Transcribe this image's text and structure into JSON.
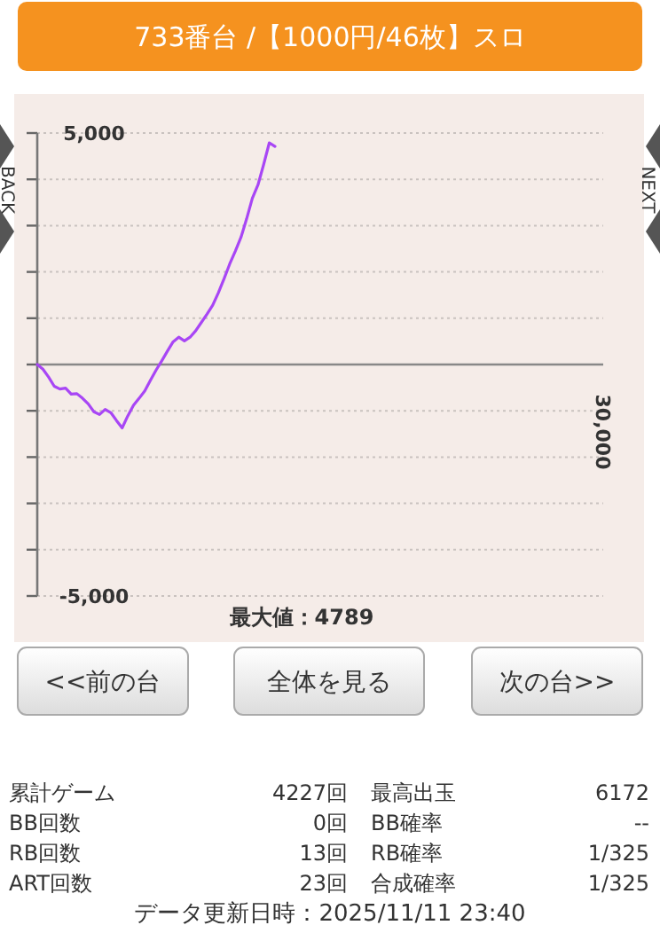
{
  "chart_data": {
    "type": "line",
    "title": "733番台 /【1000円/46枚】スロ",
    "categories": [
      null,
      null,
      null,
      null,
      null,
      null,
      null,
      null,
      null,
      null,
      null,
      null,
      null,
      null,
      null,
      null,
      null,
      null,
      null,
      null,
      null,
      null,
      null,
      null,
      null,
      null,
      null,
      null,
      null,
      null,
      null,
      null,
      null,
      null,
      null,
      null,
      null,
      null,
      null,
      null,
      null,
      null,
      null,
      null,
      null,
      null,
      null,
      null,
      null,
      null,
      null,
      null,
      null,
      null,
      null,
      null,
      null,
      null,
      null,
      null,
      null,
      null,
      null,
      null,
      null,
      null,
      null,
      null,
      null,
      null,
      null,
      null,
      null,
      null,
      null,
      null,
      null,
      null,
      null,
      null,
      null,
      null,
      null,
      null,
      null,
      null,
      null,
      null,
      null,
      null,
      null,
      null,
      null,
      null,
      null,
      null,
      null,
      null,
      null,
      null,
      null
    ],
    "series": [
      {
        "color": "#a846f5",
        "values": [
          0,
          -100,
          -270,
          -470,
          -530,
          -510,
          -640,
          -630,
          -730,
          -850,
          -1020,
          -1080,
          -970,
          -1040,
          -1210,
          -1370,
          -1110,
          -880,
          -730,
          -570,
          -340,
          -120,
          80,
          290,
          490,
          590,
          510,
          590,
          730,
          910,
          1090,
          1280,
          1550,
          1850,
          2170,
          2450,
          2750,
          3150,
          3590,
          3880,
          4320,
          4789,
          4710,
          null,
          null,
          null,
          null,
          null,
          null,
          null,
          null,
          null,
          null,
          null,
          null,
          null,
          null,
          null,
          null,
          null,
          null,
          null,
          null,
          null,
          null,
          null,
          null,
          null,
          null,
          null,
          null,
          null,
          null,
          null,
          null,
          null,
          null,
          null,
          null,
          null,
          null,
          null,
          null,
          null,
          null,
          null,
          null,
          null,
          null,
          null,
          null,
          null,
          null,
          null,
          null,
          null,
          null,
          null,
          null,
          null,
          null
        ]
      }
    ],
    "ylim": [
      -5000,
      5000
    ],
    "yticks": [
      {
        "value": 5000,
        "label": "5,000"
      },
      {
        "value": 4000,
        "label": null
      },
      {
        "value": 3000,
        "label": null
      },
      {
        "value": 2000,
        "label": null
      },
      {
        "value": 1000,
        "label": null
      },
      {
        "value": 0,
        "label": null
      },
      {
        "value": -1000,
        "label": null
      },
      {
        "value": -2000,
        "label": null
      },
      {
        "value": -3000,
        "label": null
      },
      {
        "value": -4000,
        "label": null
      },
      {
        "value": -5000,
        "label": "-5,000"
      }
    ],
    "grid": "y",
    "marker": "none",
    "line_style": "solid",
    "annotations": [
      "最大値：4789",
      "BACK",
      "NEXT",
      "<<前の台",
      "全体を見る",
      "次の台>>",
      "累計ゲーム",
      "4227回",
      "最高出玉",
      "6172",
      "BB回数",
      "0回",
      "BB確率",
      "--",
      "RB回数",
      "13回",
      "RB確率",
      "1/325",
      "ART回数",
      "23回",
      "合成確率",
      "1/325",
      "データ更新日時：2025/11/11 23:40",
      "30,000"
    ]
  }
}
